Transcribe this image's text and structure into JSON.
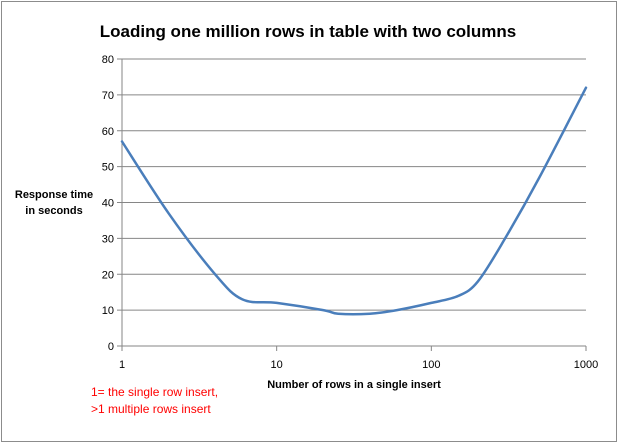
{
  "chart_data": {
    "type": "line",
    "title": "Loading one million rows in table with two columns",
    "xlabel": "Number of rows in a single insert",
    "ylabel_lines": [
      "Response time",
      "in seconds"
    ],
    "x_scale": "log",
    "xlim": [
      1,
      1000
    ],
    "ylim": [
      0,
      80
    ],
    "x_ticks": [
      1,
      10,
      100,
      1000
    ],
    "y_ticks": [
      0,
      10,
      20,
      30,
      40,
      50,
      60,
      70,
      80
    ],
    "grid": "horizontal",
    "legend": "none",
    "series": [
      {
        "color": "#4a7ebb",
        "x": [
          1,
          2,
          4,
          6,
          10,
          20,
          25,
          40,
          60,
          100,
          150,
          200,
          300,
          500,
          1000
        ],
        "y": [
          57,
          37,
          20,
          13,
          12,
          10,
          9,
          9,
          10,
          12,
          14,
          18,
          30,
          47,
          72
        ]
      }
    ],
    "annotations": [
      "1= the single row  insert,",
      ">1 multiple rows insert"
    ],
    "annotation_color": "#ff0000"
  }
}
